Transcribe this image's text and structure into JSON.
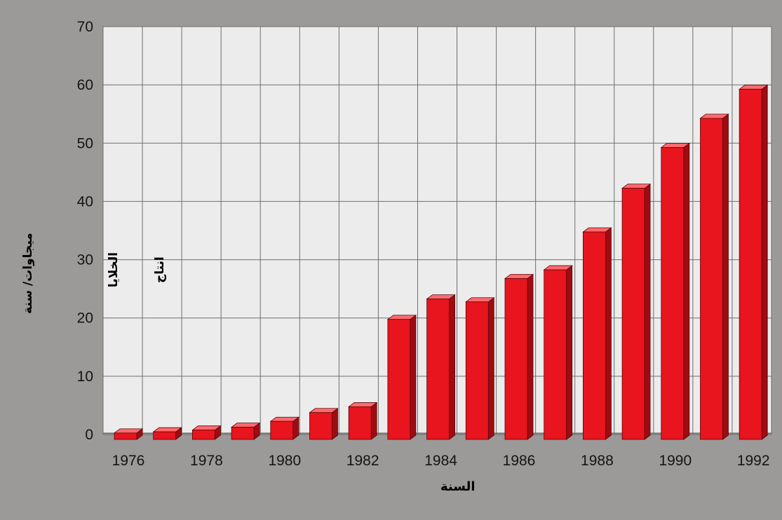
{
  "chart_data": {
    "type": "bar",
    "categories": [
      "1976",
      "1977",
      "1978",
      "1979",
      "1980",
      "1981",
      "1982",
      "1983",
      "1984",
      "1985",
      "1986",
      "1987",
      "1988",
      "1989",
      "1990",
      "1991",
      "1992"
    ],
    "values": [
      0.5,
      0.7,
      1,
      1.5,
      2.5,
      4,
      5,
      20,
      23.5,
      23,
      27,
      28.5,
      35,
      42.5,
      49.5,
      54.5,
      59.5
    ],
    "x_tick_labels": [
      "1976",
      "1978",
      "1980",
      "1982",
      "1984",
      "1986",
      "1988",
      "1990",
      "1992"
    ],
    "y_ticks": [
      "0",
      "10",
      "20",
      "30",
      "40",
      "50",
      "60",
      "70"
    ],
    "ylim": [
      0,
      70
    ],
    "grid": true,
    "xlabel": "السنة",
    "ylabel": "ميجاوات/ سنة",
    "annotations": [
      "الخلايا",
      "انتاج"
    ],
    "colors": {
      "bar_front": "#e8141e",
      "bar_side": "#9e0c12",
      "bar_top": "#ff6a6e",
      "plot_bg": "#ececec",
      "grid": "#6e6e6e"
    }
  }
}
